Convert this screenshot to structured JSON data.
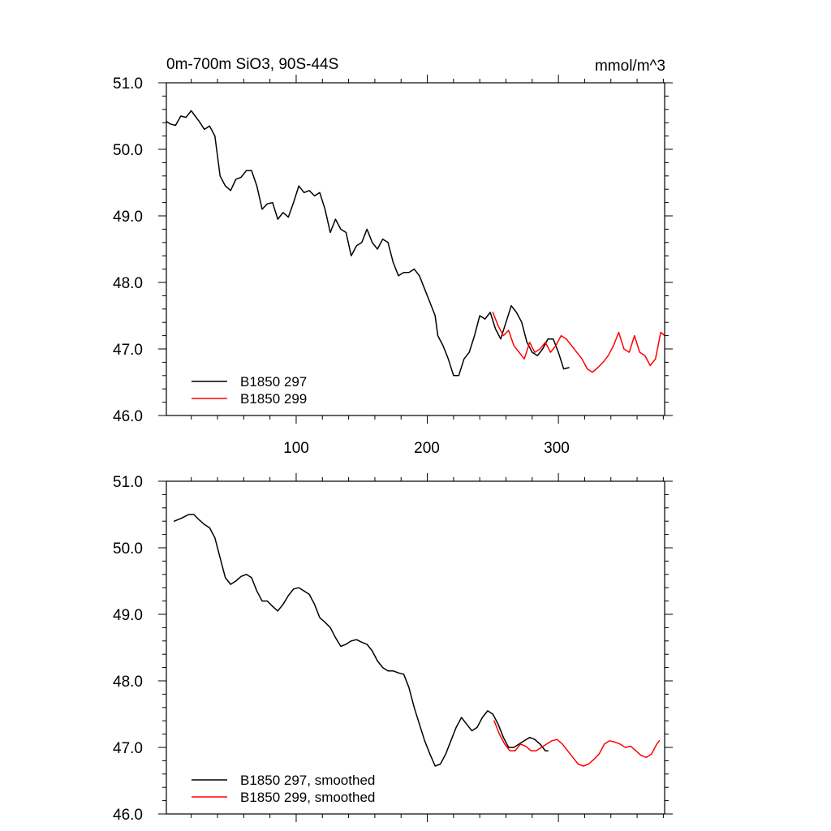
{
  "chart_data": [
    {
      "type": "line",
      "title": "0m-700m SiO3, 90S-44S",
      "units": "mmol/m^3",
      "xlabel": "",
      "ylabel": "",
      "xlim": [
        1,
        381
      ],
      "ylim": [
        46.0,
        51.0
      ],
      "x_ticks": [
        100,
        200,
        300
      ],
      "y_ticks": [
        "46.0",
        "47.0",
        "48.0",
        "49.0",
        "50.0",
        "51.0"
      ],
      "legend_position": "bottom-left",
      "grid": false,
      "series": [
        {
          "name": "B1850 297",
          "color": "#000000",
          "points": [
            [
              1,
              50.42
            ],
            [
              4,
              50.38
            ],
            [
              8,
              50.36
            ],
            [
              12,
              50.5
            ],
            [
              16,
              50.48
            ],
            [
              20,
              50.58
            ],
            [
              23,
              50.5
            ],
            [
              26,
              50.42
            ],
            [
              30,
              50.3
            ],
            [
              34,
              50.35
            ],
            [
              38,
              50.2
            ],
            [
              40,
              49.9
            ],
            [
              42,
              49.6
            ],
            [
              46,
              49.45
            ],
            [
              50,
              49.38
            ],
            [
              54,
              49.55
            ],
            [
              58,
              49.58
            ],
            [
              62,
              49.68
            ],
            [
              66,
              49.68
            ],
            [
              70,
              49.45
            ],
            [
              74,
              49.1
            ],
            [
              78,
              49.18
            ],
            [
              82,
              49.2
            ],
            [
              86,
              48.95
            ],
            [
              90,
              49.05
            ],
            [
              94,
              48.98
            ],
            [
              98,
              49.2
            ],
            [
              102,
              49.45
            ],
            [
              106,
              49.35
            ],
            [
              110,
              49.38
            ],
            [
              114,
              49.3
            ],
            [
              118,
              49.35
            ],
            [
              122,
              49.1
            ],
            [
              126,
              48.75
            ],
            [
              130,
              48.95
            ],
            [
              134,
              48.8
            ],
            [
              138,
              48.75
            ],
            [
              142,
              48.4
            ],
            [
              146,
              48.55
            ],
            [
              150,
              48.6
            ],
            [
              154,
              48.8
            ],
            [
              158,
              48.6
            ],
            [
              162,
              48.5
            ],
            [
              166,
              48.65
            ],
            [
              170,
              48.6
            ],
            [
              174,
              48.3
            ],
            [
              178,
              48.1
            ],
            [
              182,
              48.15
            ],
            [
              186,
              48.15
            ],
            [
              190,
              48.2
            ],
            [
              194,
              48.1
            ],
            [
              198,
              47.9
            ],
            [
              202,
              47.7
            ],
            [
              206,
              47.5
            ],
            [
              208,
              47.2
            ],
            [
              212,
              47.05
            ],
            [
              216,
              46.85
            ],
            [
              220,
              46.6
            ],
            [
              224,
              46.6
            ],
            [
              228,
              46.85
            ],
            [
              232,
              46.95
            ],
            [
              236,
              47.2
            ],
            [
              240,
              47.5
            ],
            [
              244,
              47.45
            ],
            [
              248,
              47.55
            ],
            [
              252,
              47.3
            ],
            [
              256,
              47.15
            ],
            [
              260,
              47.4
            ],
            [
              264,
              47.65
            ],
            [
              268,
              47.55
            ],
            [
              272,
              47.4
            ],
            [
              276,
              47.1
            ],
            [
              280,
              46.95
            ],
            [
              284,
              46.9
            ],
            [
              288,
              47.0
            ],
            [
              292,
              47.15
            ],
            [
              296,
              47.15
            ],
            [
              300,
              46.95
            ],
            [
              304,
              46.7
            ],
            [
              308,
              46.72
            ]
          ]
        },
        {
          "name": "B1850 299",
          "color": "#ff0000",
          "points": [
            [
              250,
              47.55
            ],
            [
              254,
              47.35
            ],
            [
              258,
              47.2
            ],
            [
              262,
              47.28
            ],
            [
              266,
              47.05
            ],
            [
              270,
              46.95
            ],
            [
              274,
              46.85
            ],
            [
              278,
              47.1
            ],
            [
              282,
              46.95
            ],
            [
              286,
              47.0
            ],
            [
              290,
              47.1
            ],
            [
              294,
              46.95
            ],
            [
              298,
              47.05
            ],
            [
              302,
              47.2
            ],
            [
              306,
              47.15
            ],
            [
              310,
              47.05
            ],
            [
              314,
              46.95
            ],
            [
              318,
              46.85
            ],
            [
              322,
              46.7
            ],
            [
              326,
              46.65
            ],
            [
              330,
              46.72
            ],
            [
              334,
              46.8
            ],
            [
              338,
              46.9
            ],
            [
              342,
              47.05
            ],
            [
              346,
              47.25
            ],
            [
              350,
              47.0
            ],
            [
              354,
              46.95
            ],
            [
              358,
              47.2
            ],
            [
              362,
              46.95
            ],
            [
              366,
              46.9
            ],
            [
              370,
              46.75
            ],
            [
              374,
              46.85
            ],
            [
              378,
              47.25
            ],
            [
              381,
              47.2
            ]
          ]
        }
      ]
    },
    {
      "type": "line",
      "title": "",
      "xlabel": "",
      "ylabel": "",
      "xlim": [
        1,
        381
      ],
      "ylim": [
        46.0,
        51.0
      ],
      "x_ticks": [
        100,
        200,
        300
      ],
      "y_ticks": [
        "46.0",
        "47.0",
        "48.0",
        "49.0",
        "50.0",
        "51.0"
      ],
      "legend_position": "bottom-left",
      "grid": false,
      "series": [
        {
          "name": "B1850 297, smoothed",
          "color": "#000000",
          "points": [
            [
              7,
              50.4
            ],
            [
              12,
              50.44
            ],
            [
              18,
              50.5
            ],
            [
              22,
              50.5
            ],
            [
              26,
              50.42
            ],
            [
              30,
              50.35
            ],
            [
              34,
              50.3
            ],
            [
              38,
              50.15
            ],
            [
              42,
              49.85
            ],
            [
              46,
              49.55
            ],
            [
              50,
              49.45
            ],
            [
              54,
              49.5
            ],
            [
              58,
              49.57
            ],
            [
              62,
              49.6
            ],
            [
              66,
              49.55
            ],
            [
              70,
              49.35
            ],
            [
              74,
              49.2
            ],
            [
              78,
              49.2
            ],
            [
              82,
              49.12
            ],
            [
              86,
              49.05
            ],
            [
              90,
              49.15
            ],
            [
              94,
              49.28
            ],
            [
              98,
              49.38
            ],
            [
              102,
              49.4
            ],
            [
              106,
              49.35
            ],
            [
              110,
              49.3
            ],
            [
              114,
              49.15
            ],
            [
              118,
              48.95
            ],
            [
              122,
              48.88
            ],
            [
              126,
              48.8
            ],
            [
              130,
              48.65
            ],
            [
              134,
              48.52
            ],
            [
              138,
              48.55
            ],
            [
              142,
              48.6
            ],
            [
              146,
              48.62
            ],
            [
              150,
              48.58
            ],
            [
              154,
              48.55
            ],
            [
              158,
              48.45
            ],
            [
              162,
              48.3
            ],
            [
              166,
              48.2
            ],
            [
              170,
              48.15
            ],
            [
              174,
              48.15
            ],
            [
              178,
              48.12
            ],
            [
              182,
              48.1
            ],
            [
              186,
              47.9
            ],
            [
              190,
              47.6
            ],
            [
              194,
              47.35
            ],
            [
              198,
              47.1
            ],
            [
              202,
              46.9
            ],
            [
              206,
              46.72
            ],
            [
              210,
              46.75
            ],
            [
              214,
              46.9
            ],
            [
              218,
              47.1
            ],
            [
              222,
              47.3
            ],
            [
              226,
              47.45
            ],
            [
              230,
              47.35
            ],
            [
              234,
              47.25
            ],
            [
              238,
              47.3
            ],
            [
              242,
              47.45
            ],
            [
              246,
              47.55
            ],
            [
              250,
              47.5
            ],
            [
              254,
              47.35
            ],
            [
              258,
              47.15
            ],
            [
              262,
              47.0
            ],
            [
              266,
              47.0
            ],
            [
              270,
              47.05
            ],
            [
              274,
              47.1
            ],
            [
              278,
              47.15
            ],
            [
              282,
              47.12
            ],
            [
              286,
              47.05
            ],
            [
              290,
              46.95
            ],
            [
              292,
              46.95
            ]
          ]
        },
        {
          "name": "B1850 299, smoothed",
          "color": "#ff0000",
          "points": [
            [
              251,
              47.4
            ],
            [
              255,
              47.2
            ],
            [
              259,
              47.05
            ],
            [
              263,
              46.95
            ],
            [
              267,
              46.95
            ],
            [
              271,
              47.05
            ],
            [
              275,
              47.02
            ],
            [
              279,
              46.95
            ],
            [
              283,
              46.95
            ],
            [
              287,
              47.0
            ],
            [
              291,
              47.05
            ],
            [
              295,
              47.1
            ],
            [
              299,
              47.12
            ],
            [
              303,
              47.05
            ],
            [
              307,
              46.95
            ],
            [
              311,
              46.85
            ],
            [
              315,
              46.75
            ],
            [
              319,
              46.72
            ],
            [
              323,
              46.75
            ],
            [
              327,
              46.82
            ],
            [
              331,
              46.9
            ],
            [
              335,
              47.05
            ],
            [
              339,
              47.1
            ],
            [
              343,
              47.08
            ],
            [
              347,
              47.05
            ],
            [
              351,
              47.0
            ],
            [
              355,
              47.02
            ],
            [
              359,
              46.95
            ],
            [
              363,
              46.88
            ],
            [
              367,
              46.85
            ],
            [
              371,
              46.9
            ],
            [
              375,
              47.05
            ],
            [
              377,
              47.1
            ]
          ]
        }
      ]
    }
  ]
}
